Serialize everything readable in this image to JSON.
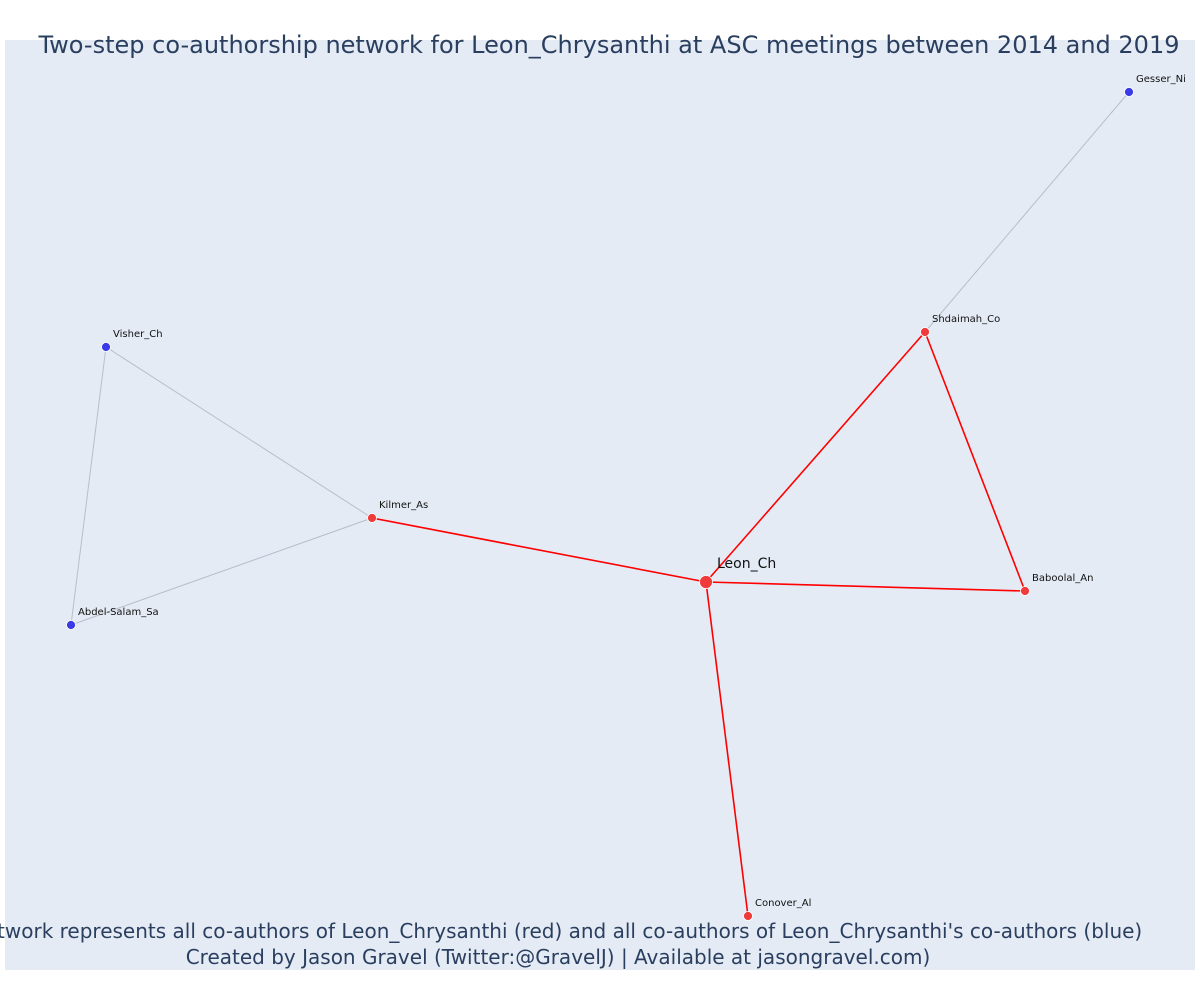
{
  "title": "Two-step co-authorship network for Leon_Chrysanthi at ASC meetings between 2014 and 2019",
  "caption_line1": "Network represents all co-authors of Leon_Chrysanthi (red) and all co-authors of Leon_Chrysanthi's co-authors (blue)",
  "caption_line2": "Created by Jason Gravel (Twitter:@GravelJ) | Available at jasongravel.com)",
  "colors": {
    "background": "#e5ebf5",
    "direct_node": "#ef3b3b",
    "second_node": "#3a3ae6",
    "direct_edge": "#ff0000",
    "second_edge": "#b8bdcc",
    "text": "#2a3f5f"
  },
  "nodes": [
    {
      "id": "Leon_Ch",
      "label": "Leon_Ch",
      "group": "focal"
    },
    {
      "id": "Kilmer_As",
      "label": "Kilmer_As",
      "group": "direct"
    },
    {
      "id": "Shdaimah_Co",
      "label": "Shdaimah_Co",
      "group": "direct"
    },
    {
      "id": "Baboolal_An",
      "label": "Baboolal_An",
      "group": "direct"
    },
    {
      "id": "Conover_Al",
      "label": "Conover_Al",
      "group": "direct"
    },
    {
      "id": "Visher_Ch",
      "label": "Visher_Ch",
      "group": "second"
    },
    {
      "id": "Abdel-Salam_Sa",
      "label": "Abdel-Salam_Sa",
      "group": "second"
    },
    {
      "id": "Gesser_Ni",
      "label": "Gesser_Ni",
      "group": "second"
    }
  ],
  "edges": [
    {
      "source": "Leon_Ch",
      "target": "Kilmer_As",
      "type": "direct"
    },
    {
      "source": "Leon_Ch",
      "target": "Shdaimah_Co",
      "type": "direct"
    },
    {
      "source": "Leon_Ch",
      "target": "Baboolal_An",
      "type": "direct"
    },
    {
      "source": "Leon_Ch",
      "target": "Conover_Al",
      "type": "direct"
    },
    {
      "source": "Shdaimah_Co",
      "target": "Baboolal_An",
      "type": "direct"
    },
    {
      "source": "Kilmer_As",
      "target": "Visher_Ch",
      "type": "second"
    },
    {
      "source": "Kilmer_As",
      "target": "Abdel-Salam_Sa",
      "type": "second"
    },
    {
      "source": "Visher_Ch",
      "target": "Abdel-Salam_Sa",
      "type": "second"
    },
    {
      "source": "Shdaimah_Co",
      "target": "Gesser_Ni",
      "type": "second"
    }
  ]
}
